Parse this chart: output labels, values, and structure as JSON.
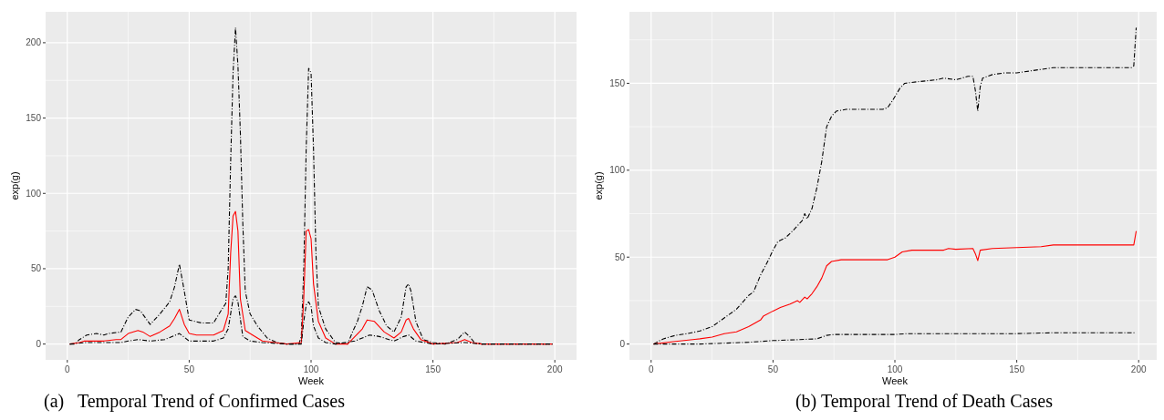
{
  "chart_data": [
    {
      "type": "line",
      "title": "(a)   Temporal Trend of Confirmed Cases",
      "xlabel": "Week",
      "ylabel": "exp(g)",
      "xlim": [
        -8.9,
        208.9
      ],
      "ylim": [
        -10.5,
        220.5
      ],
      "xticks": [
        0,
        50,
        100,
        150,
        200
      ],
      "yticks": [
        0,
        50,
        100,
        150,
        200
      ],
      "grid": true,
      "series": [
        {
          "color": "#000000",
          "line_style": "dashdot",
          "x": [
            1,
            3,
            5,
            8,
            12,
            15,
            17,
            22,
            25,
            28,
            30,
            34,
            38,
            42,
            44,
            46,
            48,
            50,
            55,
            60,
            63,
            65,
            66,
            67,
            68,
            69,
            70,
            71,
            72,
            73,
            75,
            78,
            82,
            86,
            90,
            95,
            96,
            97,
            98,
            99,
            100,
            101,
            102,
            103,
            106,
            110,
            115,
            117,
            119,
            121,
            123,
            125,
            128,
            131,
            134,
            137,
            139,
            140,
            141,
            143,
            146,
            150,
            155,
            160,
            163,
            165,
            167,
            170,
            199
          ],
          "values": [
            0,
            0,
            3,
            6,
            7,
            6,
            7,
            8,
            18,
            23,
            22,
            13,
            20,
            28,
            38,
            53,
            35,
            16,
            14,
            14,
            22,
            27,
            50,
            120,
            180,
            210,
            185,
            140,
            80,
            35,
            20,
            12,
            4,
            1,
            0,
            0,
            5,
            50,
            130,
            183,
            180,
            130,
            60,
            25,
            10,
            1,
            0,
            8,
            15,
            25,
            38,
            36,
            22,
            12,
            8,
            18,
            38,
            40,
            35,
            15,
            3,
            1,
            0,
            3,
            8,
            5,
            1,
            0,
            0
          ]
        },
        {
          "color": "#ff0000",
          "line_style": "solid",
          "x": [
            1,
            5,
            7,
            15,
            20,
            22,
            25,
            29,
            31,
            34,
            38,
            42,
            44,
            46,
            48,
            50,
            53,
            60,
            64,
            66,
            67,
            68,
            69,
            70,
            71,
            73,
            76,
            80,
            85,
            90,
            96,
            97,
            98,
            99,
            100,
            101,
            103,
            106,
            110,
            115,
            118,
            121,
            123,
            126,
            130,
            134,
            137,
            139,
            140,
            142,
            145,
            150,
            160,
            163,
            166,
            170,
            199
          ],
          "values": [
            0,
            1,
            2,
            2,
            3,
            3,
            7,
            9,
            8,
            5,
            8,
            12,
            17,
            23,
            13,
            7,
            6,
            6,
            9,
            20,
            60,
            85,
            88,
            75,
            30,
            9,
            6,
            2,
            1,
            0,
            1,
            30,
            75,
            76,
            70,
            40,
            15,
            4,
            0,
            0,
            5,
            10,
            16,
            15,
            8,
            4,
            8,
            16,
            17,
            10,
            3,
            0,
            1,
            3,
            1,
            0,
            0
          ]
        },
        {
          "color": "#000000",
          "line_style": "dashdot",
          "x": [
            1,
            8,
            15,
            22,
            25,
            29,
            34,
            40,
            46,
            50,
            60,
            64,
            66,
            68,
            69,
            70,
            72,
            75,
            80,
            90,
            96,
            97,
            98,
            99,
            100,
            101,
            103,
            106,
            110,
            118,
            124,
            128,
            134,
            138,
            140,
            143,
            150,
            163,
            170,
            199
          ],
          "values": [
            0,
            1,
            1,
            1,
            2,
            3,
            2,
            3,
            7,
            2,
            2,
            4,
            10,
            30,
            32,
            28,
            5,
            2,
            1,
            0,
            0,
            15,
            26,
            28,
            25,
            12,
            4,
            1,
            0,
            2,
            6,
            5,
            2,
            5,
            6,
            2,
            0,
            1,
            0,
            0
          ]
        }
      ]
    },
    {
      "type": "line",
      "title": "(b) Temporal Trend of Death Cases",
      "xlabel": "Week",
      "ylabel": "exp(g)",
      "xlim": [
        -8.9,
        208.9
      ],
      "ylim": [
        -9.1,
        191.1
      ],
      "xticks": [
        0,
        50,
        100,
        150,
        200
      ],
      "yticks": [
        0,
        50,
        100,
        150
      ],
      "grid": true,
      "series": [
        {
          "color": "#000000",
          "line_style": "dashdot",
          "x": [
            1,
            5,
            10,
            15,
            20,
            25,
            30,
            35,
            40,
            42,
            45,
            48,
            50,
            52,
            55,
            58,
            62,
            63,
            64,
            66,
            68,
            70,
            72,
            74,
            76,
            80,
            85,
            90,
            95,
            97,
            99,
            102,
            104,
            110,
            117,
            120,
            125,
            130,
            132,
            133,
            134,
            135,
            136,
            140,
            145,
            150,
            155,
            160,
            165,
            170,
            180,
            190,
            197,
            198,
            199
          ],
          "values": [
            0,
            3,
            5,
            6,
            7.5,
            10,
            15,
            20,
            28,
            30,
            40,
            48,
            54,
            59,
            61,
            65,
            71,
            75,
            72,
            78,
            90,
            105,
            125,
            131,
            134,
            135,
            135,
            135,
            135,
            136,
            140,
            147,
            150,
            151,
            152,
            153,
            152,
            154,
            154,
            146,
            134,
            148,
            153,
            155,
            156,
            156,
            157,
            158,
            159,
            159,
            159,
            159,
            159,
            160,
            182
          ]
        },
        {
          "color": "#ff0000",
          "line_style": "solid",
          "x": [
            1,
            10,
            20,
            25,
            30,
            35,
            40,
            45,
            46,
            50,
            53,
            57,
            60,
            61,
            63,
            64,
            66,
            68,
            70,
            72,
            74,
            78,
            90,
            97,
            100,
            103,
            107,
            120,
            122,
            125,
            132,
            133,
            134,
            135,
            140,
            150,
            160,
            165,
            198,
            199
          ],
          "values": [
            0,
            1.5,
            3,
            4,
            6,
            7,
            10,
            14,
            16,
            19,
            21,
            23,
            25,
            24,
            27,
            26,
            29,
            33,
            38,
            45,
            47.5,
            48.5,
            48.5,
            48.5,
            50,
            53,
            54,
            54,
            55,
            54.5,
            55,
            52,
            48,
            54,
            55,
            55.5,
            56,
            57,
            57,
            65
          ]
        },
        {
          "color": "#000000",
          "line_style": "dashdot",
          "x": [
            1,
            20,
            30,
            40,
            50,
            60,
            68,
            72,
            75,
            100,
            105,
            150,
            165,
            199
          ],
          "values": [
            0,
            0,
            0.5,
            1,
            2,
            2.5,
            3,
            5,
            5.5,
            5.5,
            6,
            6,
            6.5,
            6.5
          ]
        }
      ]
    }
  ]
}
